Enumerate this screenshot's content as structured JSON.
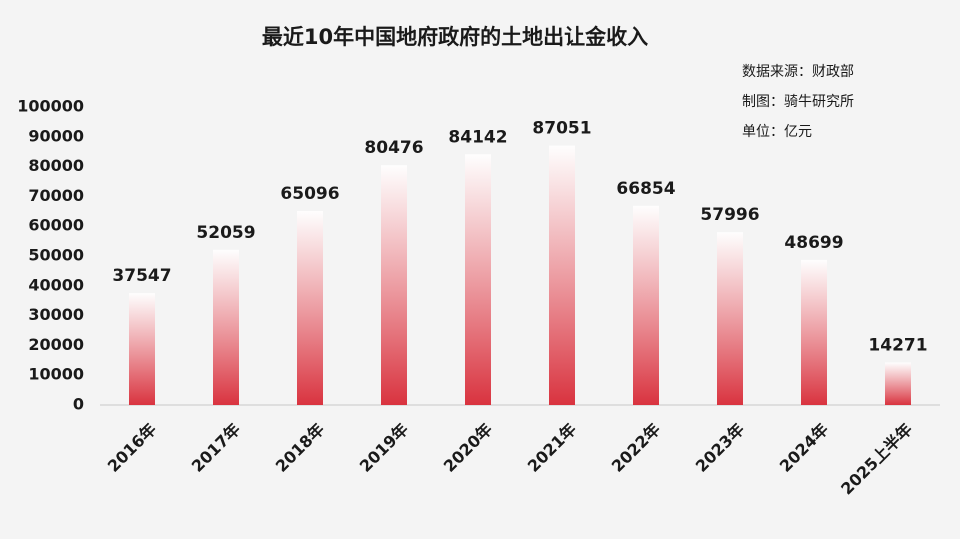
{
  "chart_data": {
    "type": "bar",
    "title": "最近10年中国地府政府的土地出让金收入",
    "annotations": [
      "数据来源：财政部",
      "制图：骑牛研究所",
      "单位：亿元"
    ],
    "categories": [
      "2016年",
      "2017年",
      "2018年",
      "2019年",
      "2020年",
      "2021年",
      "2022年",
      "2023年",
      "2024年",
      "2025上半年"
    ],
    "values": [
      37547,
      52059,
      65096,
      80476,
      84142,
      87051,
      66854,
      57996,
      48699,
      14271
    ],
    "color": "#d9333f",
    "ylim": [
      0,
      100000
    ],
    "yticks": [
      0,
      10000,
      20000,
      30000,
      40000,
      50000,
      60000,
      70000,
      80000,
      90000,
      100000
    ],
    "grid": false
  }
}
